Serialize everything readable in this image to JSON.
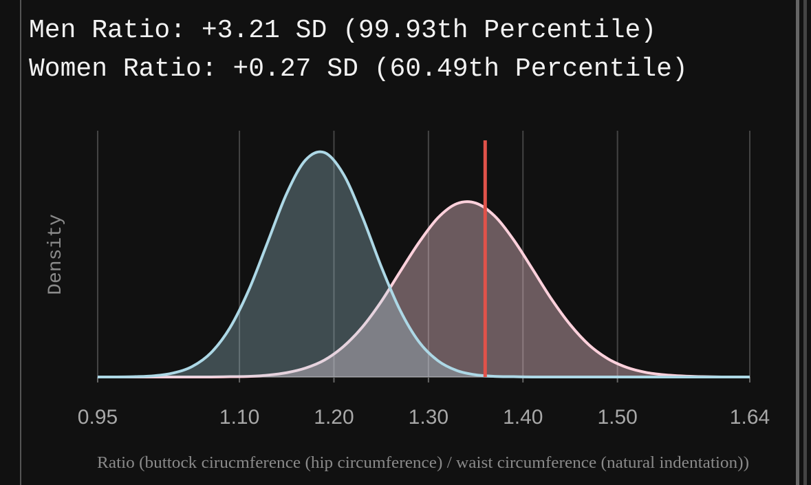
{
  "chart_data": {
    "type": "density",
    "title": "Men Ratio: +3.21 SD (99.93th Percentile)",
    "subtitle": "Women Ratio: +0.27 SD (60.49th Percentile)",
    "xlabel": "Ratio (buttock cirucmference (hip circumference) / waist circumference (natural indentation))",
    "ylabel": "Density",
    "x": [
      0.95,
      0.97,
      0.99,
      1.01,
      1.03,
      1.05,
      1.07,
      1.09,
      1.11,
      1.13,
      1.15,
      1.17,
      1.19,
      1.21,
      1.23,
      1.25,
      1.27,
      1.29,
      1.31,
      1.33,
      1.35,
      1.37,
      1.39,
      1.41,
      1.43,
      1.45,
      1.47,
      1.49,
      1.51,
      1.53,
      1.55,
      1.57,
      1.59,
      1.61,
      1.63,
      1.64
    ],
    "series": [
      {
        "color": "#ffd1dc",
        "values": [
          0,
          0,
          0,
          0,
          0,
          0,
          0,
          0.01,
          0.02,
          0.06,
          0.14,
          0.29,
          0.55,
          0.99,
          1.62,
          2.45,
          3.42,
          4.37,
          5.17,
          5.63,
          5.65,
          5.23,
          4.46,
          3.51,
          2.54,
          1.7,
          1.04,
          0.59,
          0.31,
          0.15,
          0.07,
          0.03,
          0.01,
          0,
          0,
          0
        ]
      },
      {
        "color": "#add8e6",
        "values": [
          0,
          0,
          0.01,
          0.04,
          0.13,
          0.34,
          0.79,
          1.6,
          2.83,
          4.39,
          5.96,
          7.05,
          7.29,
          6.59,
          5.21,
          3.59,
          2.17,
          1.14,
          0.53,
          0.21,
          0.07,
          0.02,
          0.01,
          0,
          0,
          0,
          0,
          0,
          0,
          0,
          0,
          0,
          0,
          0,
          0,
          0
        ]
      }
    ],
    "marker_x": 1.36,
    "marker_color": "#e0524a",
    "xlim": [
      0.95,
      1.64
    ],
    "xticks": [
      0.95,
      {
        "value": 1.1,
        "label": "1.10"
      },
      {
        "value": 1.2,
        "label": "1.20"
      },
      {
        "value": 1.3,
        "label": "1.30"
      },
      {
        "value": 1.4,
        "label": "1.40"
      },
      {
        "value": 1.5,
        "label": "1.50"
      },
      1.64
    ],
    "ylim": [
      0,
      8
    ],
    "grid": true
  }
}
